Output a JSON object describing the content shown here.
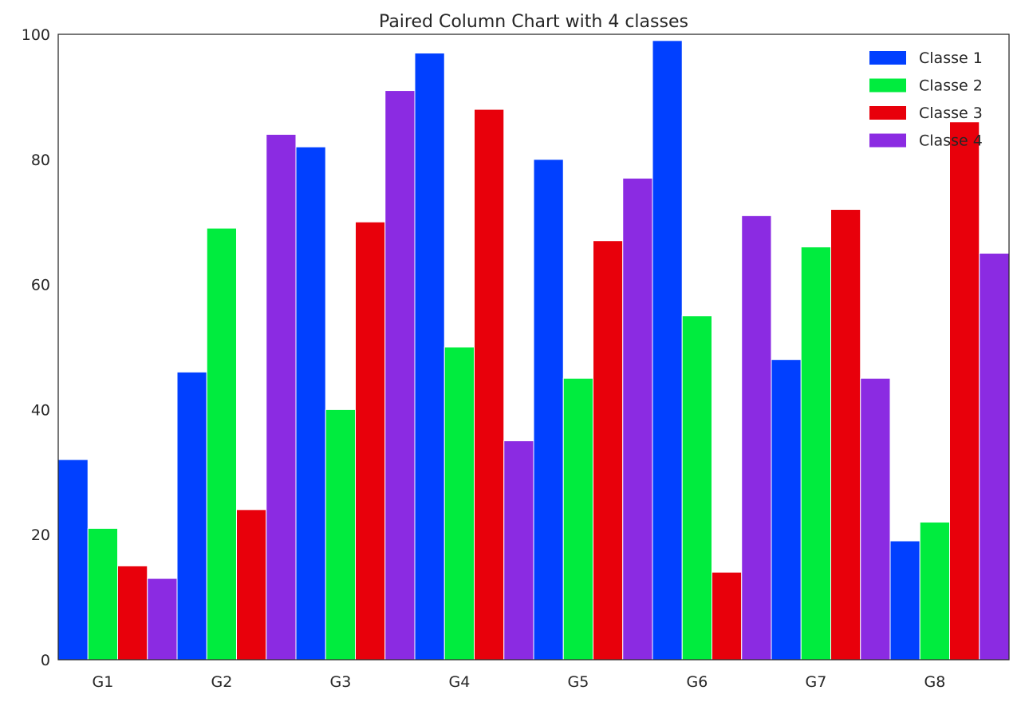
{
  "chart_data": {
    "type": "bar",
    "title": "Paired Column Chart with 4 classes",
    "xlabel": "",
    "ylabel": "",
    "categories": [
      "G1",
      "G2",
      "G3",
      "G4",
      "G5",
      "G6",
      "G7",
      "G8"
    ],
    "yticks": [
      "0",
      "20",
      "40",
      "60",
      "80",
      "100"
    ],
    "ylim": [
      0,
      100
    ],
    "grid": false,
    "legend_position": "top-right",
    "series": [
      {
        "name": "Classe 1",
        "color": "#0140FF",
        "values": [
          32,
          46,
          82,
          97,
          80,
          99,
          48,
          19
        ]
      },
      {
        "name": "Classe 2",
        "color": "#00EC3E",
        "values": [
          21,
          69,
          40,
          50,
          45,
          55,
          66,
          22
        ]
      },
      {
        "name": "Classe 3",
        "color": "#E8000B",
        "values": [
          15,
          24,
          70,
          88,
          67,
          14,
          72,
          86
        ]
      },
      {
        "name": "Classe 4",
        "color": "#8B2BE2",
        "values": [
          13,
          84,
          91,
          35,
          77,
          71,
          45,
          65
        ]
      }
    ]
  }
}
